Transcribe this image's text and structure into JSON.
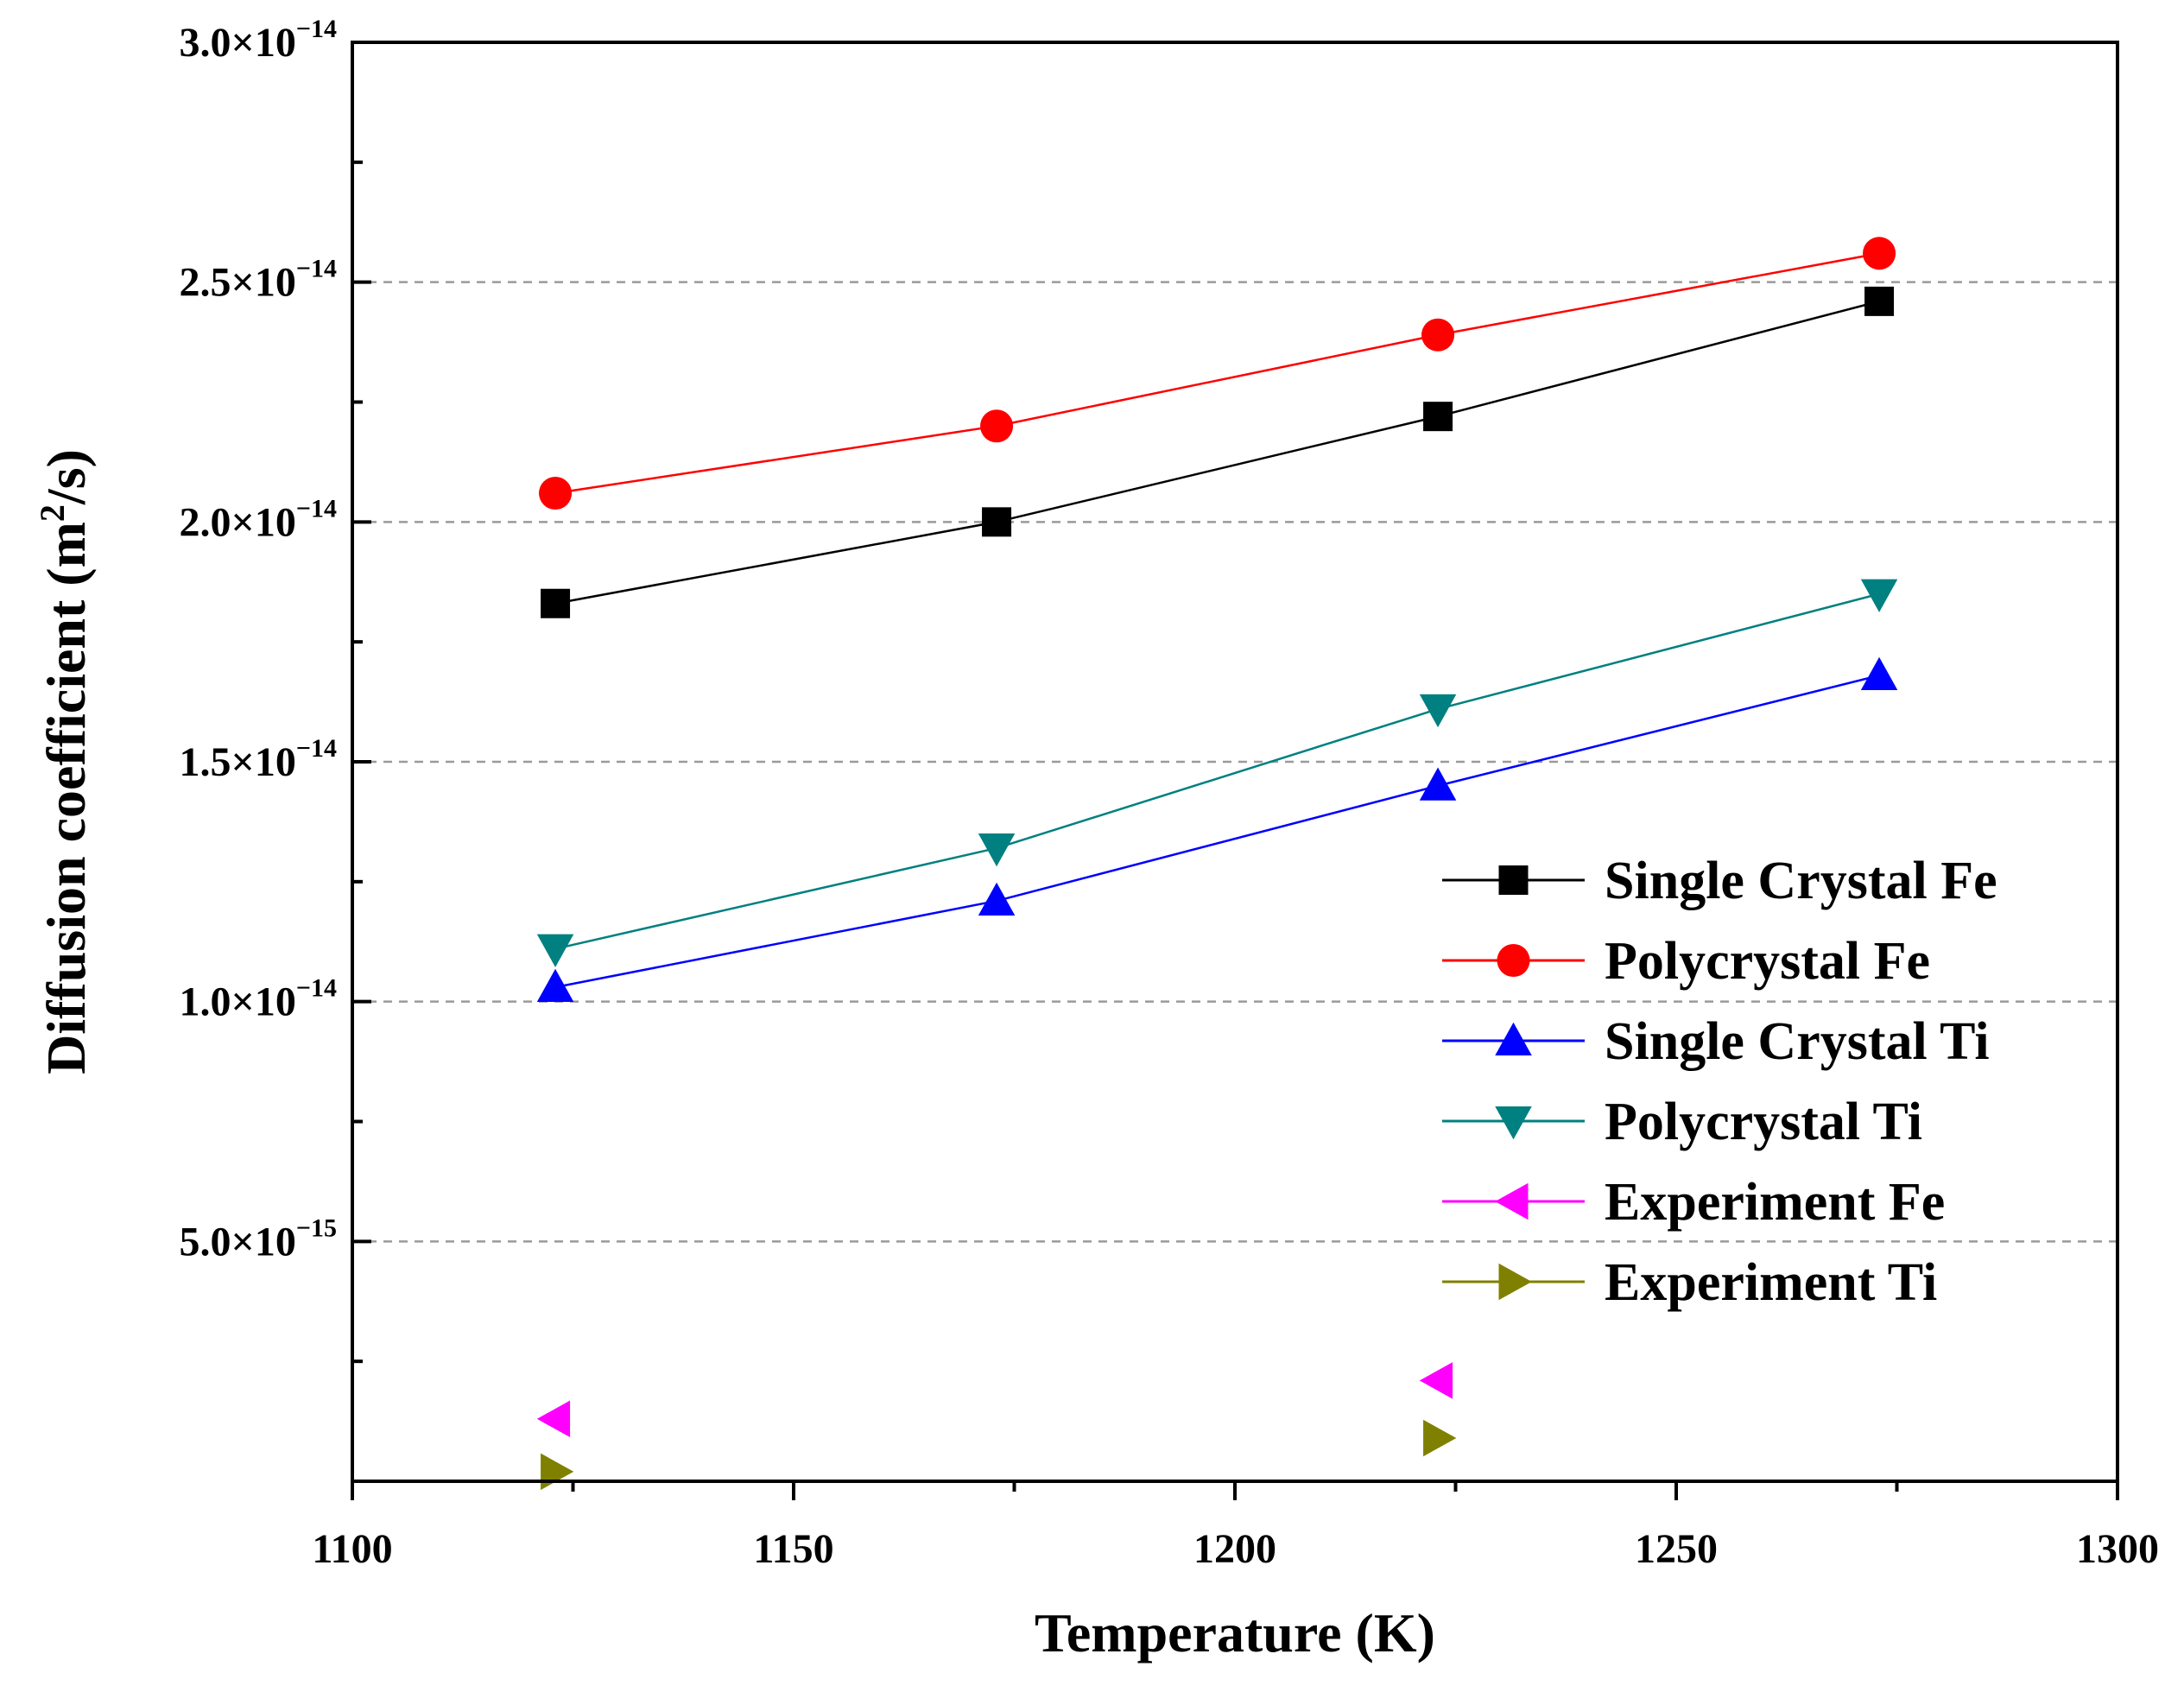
{
  "chart_data": {
    "type": "line",
    "title": "",
    "xlabel": "Temperature (K)",
    "ylabel": {
      "prefix": "Diffusion coefficient (m",
      "sup": "2",
      "suffix": "/s)"
    },
    "xlim": [
      1100,
      1300
    ],
    "ylim": [
      0,
      3e-14
    ],
    "grid": "horizontal dashed at major y ticks",
    "legend_position": "right",
    "x_ticks": [
      {
        "value": 1100,
        "label": "1100"
      },
      {
        "value": 1150,
        "label": "1150"
      },
      {
        "value": 1200,
        "label": "1200"
      },
      {
        "value": 1250,
        "label": "1250"
      },
      {
        "value": 1300,
        "label": "1300"
      }
    ],
    "y_ticks": [
      {
        "value": 5e-15,
        "mantissa": "5.0×10",
        "exponent": "−15"
      },
      {
        "value": 1e-14,
        "mantissa": "1.0×10",
        "exponent": "−14"
      },
      {
        "value": 1.5e-14,
        "mantissa": "1.5×10",
        "exponent": "−14"
      },
      {
        "value": 2e-14,
        "mantissa": "2.0×10",
        "exponent": "−14"
      },
      {
        "value": 2.5e-14,
        "mantissa": "2.5×10",
        "exponent": "−14"
      },
      {
        "value": 3e-14,
        "mantissa": "3.0×10",
        "exponent": "−14"
      }
    ],
    "y_minor_ticks": [
      2.5e-15,
      7.5e-15,
      1.25e-14,
      1.75e-14,
      2.25e-14,
      2.75e-14
    ],
    "series": [
      {
        "name": "Single Crystal Fe",
        "color": "#000000",
        "marker": "square",
        "line": true,
        "x": [
          1123,
          1173,
          1223,
          1273
        ],
        "y": [
          1.83e-14,
          2e-14,
          2.22e-14,
          2.46e-14
        ]
      },
      {
        "name": "Polycrystal Fe",
        "color": "#ff0000",
        "marker": "circle",
        "line": true,
        "x": [
          1123,
          1173,
          1223,
          1273
        ],
        "y": [
          2.06e-14,
          2.2e-14,
          2.39e-14,
          2.56e-14
        ]
      },
      {
        "name": "Single Crystal Ti",
        "color": "#0000ff",
        "marker": "triangle-up",
        "line": true,
        "x": [
          1123,
          1173,
          1223,
          1273
        ],
        "y": [
          1.03e-14,
          1.21e-14,
          1.45e-14,
          1.68e-14
        ]
      },
      {
        "name": "Polycrystal Ti",
        "color": "#008080",
        "marker": "triangle-down",
        "line": true,
        "x": [
          1123,
          1173,
          1223,
          1273
        ],
        "y": [
          1.11e-14,
          1.32e-14,
          1.61e-14,
          1.85e-14
        ]
      },
      {
        "name": "Experiment Fe",
        "color": "#ff00ff",
        "marker": "triangle-left",
        "line": false,
        "x": [
          1123,
          1223
        ],
        "y": [
          1.3e-15,
          2.1e-15
        ]
      },
      {
        "name": "Experiment Ti",
        "color": "#808000",
        "marker": "triangle-right",
        "line": false,
        "x": [
          1123,
          1223
        ],
        "y": [
          2e-16,
          9e-16
        ]
      }
    ]
  }
}
